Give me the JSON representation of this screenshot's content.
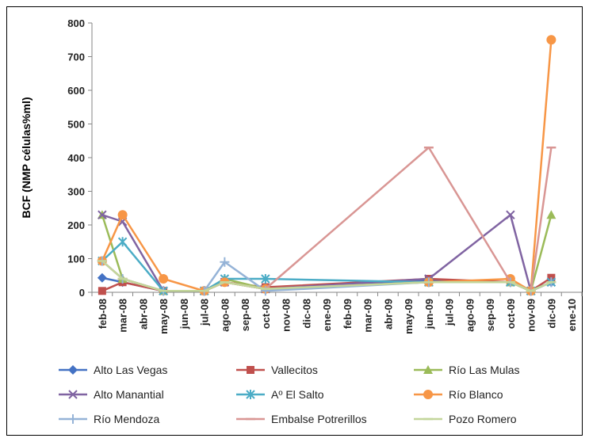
{
  "chart_data": {
    "type": "line",
    "ylabel": "BCF (NMP células%ml)",
    "ylim": [
      0,
      800
    ],
    "yticks": [
      0,
      100,
      200,
      300,
      400,
      500,
      600,
      700,
      800
    ],
    "categories": [
      "feb-08",
      "mar-08",
      "abr-08",
      "may-08",
      "jun-08",
      "jul-08",
      "ago-08",
      "sep-08",
      "oct-08",
      "nov-08",
      "dic-08",
      "ene-09",
      "feb-09",
      "mar-09",
      "abr-09",
      "may-09",
      "jun-09",
      "jul-09",
      "ago-09",
      "sep-09",
      "oct-09",
      "nov-09",
      "dic-09",
      "ene-10"
    ],
    "grid": false,
    "legend_position": "bottom",
    "series": [
      {
        "name": "Alto Las Vegas",
        "color": "#4472C4",
        "marker": "diamond",
        "points": [
          [
            0,
            43
          ],
          [
            1,
            30
          ],
          [
            3,
            4
          ],
          [
            5,
            4
          ],
          [
            6,
            30
          ],
          [
            8,
            10
          ],
          [
            16,
            35
          ],
          [
            20,
            30
          ],
          [
            21,
            4
          ],
          [
            22,
            30
          ]
        ]
      },
      {
        "name": "Vallecitos",
        "color": "#C0504D",
        "marker": "square",
        "points": [
          [
            0,
            4
          ],
          [
            1,
            30
          ],
          [
            3,
            4
          ],
          [
            5,
            4
          ],
          [
            6,
            30
          ],
          [
            8,
            15
          ],
          [
            16,
            40
          ],
          [
            20,
            30
          ],
          [
            21,
            4
          ],
          [
            22,
            43
          ]
        ]
      },
      {
        "name": "Río Las Mulas",
        "color": "#9BBB59",
        "marker": "triangle",
        "points": [
          [
            0,
            230
          ],
          [
            1,
            40
          ],
          [
            3,
            4
          ],
          [
            5,
            4
          ],
          [
            6,
            40
          ],
          [
            8,
            10
          ],
          [
            16,
            30
          ],
          [
            20,
            30
          ],
          [
            21,
            4
          ],
          [
            22,
            230
          ]
        ]
      },
      {
        "name": "Alto Manantial",
        "color": "#8064A2",
        "marker": "x",
        "points": [
          [
            0,
            230
          ],
          [
            1,
            210
          ],
          [
            3,
            4
          ],
          [
            5,
            4
          ],
          [
            6,
            30
          ],
          [
            8,
            10
          ],
          [
            16,
            40
          ],
          [
            20,
            230
          ],
          [
            21,
            4
          ],
          [
            22,
            30
          ]
        ]
      },
      {
        "name": "Aº El Salto",
        "color": "#4BACC6",
        "marker": "star",
        "points": [
          [
            0,
            93
          ],
          [
            1,
            150
          ],
          [
            3,
            4
          ],
          [
            5,
            4
          ],
          [
            6,
            40
          ],
          [
            8,
            40
          ],
          [
            16,
            30
          ],
          [
            20,
            30
          ],
          [
            21,
            4
          ],
          [
            22,
            30
          ]
        ]
      },
      {
        "name": "Río Blanco",
        "color": "#F79646",
        "marker": "circle",
        "points": [
          [
            0,
            93
          ],
          [
            1,
            230
          ],
          [
            3,
            40
          ],
          [
            5,
            4
          ],
          [
            6,
            30
          ],
          [
            8,
            10
          ],
          [
            16,
            30
          ],
          [
            20,
            40
          ],
          [
            21,
            4
          ],
          [
            22,
            750
          ]
        ]
      },
      {
        "name": "Río Mendoza",
        "color": "#95B3D7",
        "marker": "plus",
        "points": [
          [
            0,
            93
          ],
          [
            1,
            40
          ],
          [
            3,
            4
          ],
          [
            5,
            4
          ],
          [
            6,
            90
          ],
          [
            8,
            4
          ],
          [
            16,
            30
          ],
          [
            20,
            30
          ],
          [
            21,
            4
          ],
          [
            22,
            30
          ]
        ]
      },
      {
        "name": "Embalse Potrerillos",
        "color": "#D99694",
        "marker": "dash",
        "points": [
          [
            0,
            93
          ],
          [
            1,
            40
          ],
          [
            3,
            4
          ],
          [
            5,
            4
          ],
          [
            6,
            30
          ],
          [
            8,
            10
          ],
          [
            16,
            430
          ],
          [
            20,
            30
          ],
          [
            21,
            4
          ],
          [
            22,
            430
          ]
        ]
      },
      {
        "name": "Pozo Romero",
        "color": "#C3D69B",
        "marker": "dash",
        "points": [
          [
            0,
            93
          ],
          [
            1,
            40
          ],
          [
            3,
            4
          ],
          [
            5,
            4
          ],
          [
            6,
            30
          ],
          [
            8,
            10
          ],
          [
            16,
            30
          ],
          [
            20,
            30
          ],
          [
            21,
            4
          ],
          [
            22,
            30
          ]
        ]
      }
    ]
  }
}
